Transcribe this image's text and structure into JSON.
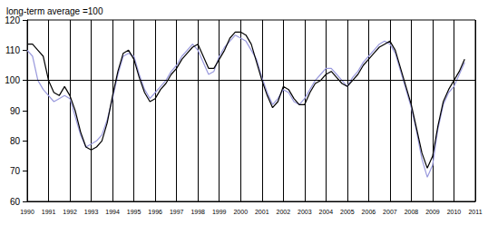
{
  "chart_data": {
    "type": "line",
    "ylabel": "long-term average =100",
    "categories": [
      "1990",
      null,
      null,
      null,
      "1991",
      null,
      null,
      null,
      "1992",
      null,
      null,
      null,
      "1993",
      null,
      null,
      null,
      "1994",
      null,
      null,
      null,
      "1995",
      null,
      null,
      null,
      "1996",
      null,
      null,
      null,
      "1997",
      null,
      null,
      null,
      "1998",
      null,
      null,
      null,
      "1999",
      null,
      null,
      null,
      "2000",
      null,
      null,
      null,
      "2001",
      null,
      null,
      null,
      "2002",
      null,
      null,
      null,
      "2003",
      null,
      null,
      null,
      "2004",
      null,
      null,
      null,
      "2005",
      null,
      null,
      null,
      "2006",
      null,
      null,
      null,
      "2007",
      null,
      null,
      null,
      "2008",
      null,
      null,
      null,
      "2009",
      null,
      null,
      null,
      "2010",
      null,
      null,
      null,
      "2011"
    ],
    "series": [
      {
        "color": "#9999dd",
        "values": [
          110,
          108,
          100,
          97,
          95,
          93,
          94,
          95,
          94,
          88,
          82,
          78,
          79,
          80,
          82,
          87,
          94,
          102,
          108,
          109,
          108,
          102,
          97,
          94,
          96,
          98,
          100,
          103,
          105,
          108,
          110,
          112,
          110,
          106,
          102,
          103,
          108,
          111,
          113,
          115,
          114,
          113,
          110,
          107,
          101,
          96,
          92,
          94,
          97,
          96,
          93,
          92,
          94,
          97,
          100,
          102,
          104,
          104,
          102,
          100,
          98,
          101,
          103,
          106,
          108,
          110,
          112,
          113,
          112,
          109,
          103,
          97,
          91,
          83,
          74,
          68,
          72,
          84,
          92,
          96,
          98,
          102,
          106,
          null,
          null
        ]
      },
      {
        "color": "#000000",
        "values": [
          112,
          112,
          110,
          108,
          100,
          96,
          95,
          98,
          95,
          90,
          83,
          78,
          77,
          78,
          80,
          86,
          95,
          103,
          109,
          110,
          107,
          101,
          96,
          93,
          94,
          97,
          99,
          102,
          104,
          107,
          109,
          111,
          112,
          108,
          104,
          104,
          107,
          110,
          114,
          116,
          116,
          115,
          112,
          106,
          100,
          95,
          91,
          93,
          98,
          97,
          94,
          92,
          92,
          96,
          99,
          100,
          102,
          103,
          101,
          99,
          98,
          100,
          102,
          105,
          107,
          109,
          111,
          112,
          113,
          110,
          104,
          98,
          92,
          84,
          76,
          71,
          75,
          85,
          93,
          97,
          100,
          103,
          107,
          null,
          null
        ]
      }
    ],
    "hline": 100,
    "ylim": [
      60,
      120
    ],
    "yticks": [
      60,
      70,
      80,
      90,
      100,
      110,
      120
    ],
    "grid": "x"
  }
}
